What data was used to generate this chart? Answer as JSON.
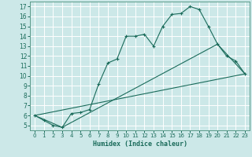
{
  "xlabel": "Humidex (Indice chaleur)",
  "bg_color": "#cce8e8",
  "grid_color": "#b8d8d8",
  "line_color": "#1a6b5a",
  "spine_color": "#5a9a8a",
  "xlim": [
    -0.5,
    23.5
  ],
  "ylim": [
    4.5,
    17.5
  ],
  "xticks": [
    0,
    1,
    2,
    3,
    4,
    5,
    6,
    7,
    8,
    9,
    10,
    11,
    12,
    13,
    14,
    15,
    16,
    17,
    18,
    19,
    20,
    21,
    22,
    23
  ],
  "yticks": [
    5,
    6,
    7,
    8,
    9,
    10,
    11,
    12,
    13,
    14,
    15,
    16,
    17
  ],
  "curve_x": [
    0,
    1,
    2,
    3,
    4,
    5,
    6,
    7,
    8,
    9,
    10,
    11,
    12,
    13,
    14,
    15,
    16,
    17,
    18,
    19,
    20,
    21,
    22,
    23
  ],
  "curve_y": [
    6.0,
    5.5,
    5.0,
    4.8,
    6.2,
    6.3,
    6.6,
    9.2,
    11.3,
    11.7,
    14.0,
    14.0,
    14.2,
    13.0,
    15.0,
    16.2,
    16.3,
    17.0,
    16.7,
    15.0,
    13.2,
    12.0,
    11.5,
    10.2
  ],
  "line2_x": [
    0,
    3,
    20,
    23
  ],
  "line2_y": [
    6.0,
    4.8,
    13.2,
    10.2
  ],
  "line3_x": [
    0,
    23
  ],
  "line3_y": [
    6.0,
    10.2
  ]
}
